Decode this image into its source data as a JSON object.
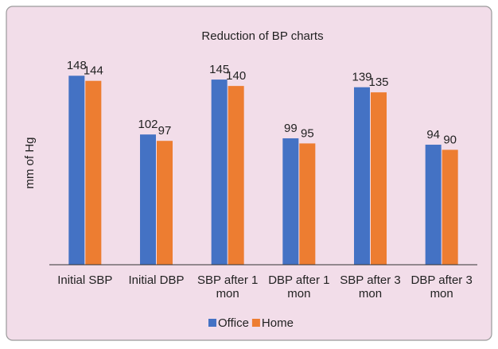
{
  "chart_data": {
    "type": "bar",
    "title": "Reduction of BP charts",
    "y_label": "mm of Hg",
    "categories": [
      "Initial SBP",
      "Initial DBP",
      "SBP after 1 mon",
      "DBP after 1 mon",
      "SBP after 3 mon",
      "DBP after 3 mon"
    ],
    "series": [
      {
        "name": "Office",
        "color": "#4472c4",
        "values": [
          148,
          102,
          145,
          99,
          139,
          94
        ]
      },
      {
        "name": "Home",
        "color": "#ed7d31",
        "values": [
          144,
          97,
          140,
          95,
          135,
          90
        ]
      }
    ],
    "ylim": [
      0,
      160
    ],
    "legend": "bottom"
  }
}
